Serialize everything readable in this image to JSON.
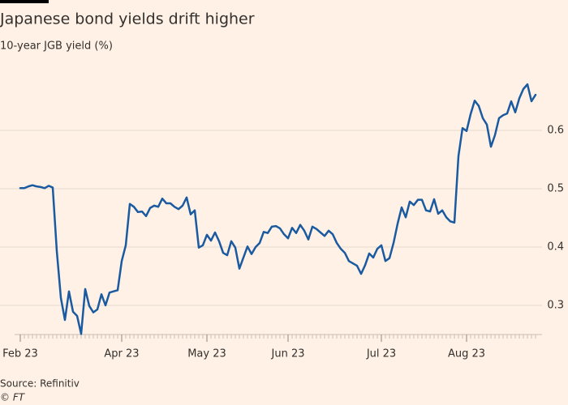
{
  "chart_data": {
    "type": "line",
    "title": "Japanese bond yields drift higher",
    "subtitle": "10-year JGB yield (%)",
    "source": "Source: Refinitiv",
    "credit": "© FT",
    "categories": [
      "Feb 23",
      null,
      null,
      null,
      null,
      null,
      null,
      null,
      null,
      null,
      null,
      null,
      null,
      null,
      null,
      null,
      null,
      null,
      null,
      null,
      null,
      null,
      null,
      null,
      null,
      "Apr 23",
      null,
      null,
      null,
      null,
      null,
      null,
      null,
      null,
      null,
      null,
      null,
      null,
      null,
      null,
      null,
      null,
      null,
      null,
      null,
      null,
      "May 23",
      null,
      null,
      null,
      null,
      null,
      null,
      null,
      null,
      null,
      null,
      null,
      null,
      null,
      null,
      null,
      null,
      null,
      null,
      null,
      "Jun 23",
      null,
      null,
      null,
      null,
      null,
      null,
      null,
      null,
      null,
      null,
      null,
      null,
      null,
      null,
      null,
      null,
      null,
      null,
      null,
      null,
      null,
      null,
      "Jul 23",
      null,
      null,
      null,
      null,
      null,
      null,
      null,
      null,
      null,
      null,
      null,
      null,
      null,
      null,
      null,
      null,
      null,
      null,
      null,
      null,
      "Aug 23",
      null,
      null,
      null,
      null,
      null,
      null,
      null,
      null,
      null,
      null,
      null,
      null,
      null,
      null,
      null,
      null,
      null
    ],
    "series": [
      {
        "name": "10-year JGB yield",
        "color": "#1a5aa0",
        "values": [
          0.501,
          0.501,
          0.504,
          0.506,
          0.504,
          0.503,
          0.501,
          0.505,
          0.502,
          0.393,
          0.313,
          0.275,
          0.324,
          0.289,
          0.282,
          0.251,
          0.328,
          0.299,
          0.288,
          0.293,
          0.319,
          0.3,
          0.322,
          0.324,
          0.326,
          0.376,
          0.403,
          0.474,
          0.469,
          0.46,
          0.461,
          0.453,
          0.467,
          0.471,
          0.469,
          0.483,
          0.475,
          0.475,
          0.469,
          0.465,
          0.471,
          0.485,
          0.456,
          0.463,
          0.399,
          0.403,
          0.421,
          0.411,
          0.425,
          0.41,
          0.39,
          0.386,
          0.41,
          0.399,
          0.363,
          0.382,
          0.401,
          0.388,
          0.4,
          0.407,
          0.426,
          0.424,
          0.435,
          0.436,
          0.432,
          0.422,
          0.415,
          0.433,
          0.424,
          0.438,
          0.428,
          0.413,
          0.435,
          0.431,
          0.425,
          0.419,
          0.428,
          0.422,
          0.407,
          0.397,
          0.39,
          0.376,
          0.372,
          0.368,
          0.354,
          0.369,
          0.389,
          0.382,
          0.397,
          0.403,
          0.376,
          0.381,
          0.407,
          0.44,
          0.468,
          0.451,
          0.478,
          0.472,
          0.481,
          0.481,
          0.463,
          0.461,
          0.482,
          0.457,
          0.463,
          0.451,
          0.444,
          0.442,
          0.556,
          0.604,
          0.599,
          0.628,
          0.651,
          0.642,
          0.621,
          0.61,
          0.572,
          0.592,
          0.621,
          0.626,
          0.629,
          0.65,
          0.631,
          0.655,
          0.671,
          0.679,
          0.65,
          0.661
        ]
      }
    ],
    "ylim": [
      0.25,
      0.7
    ],
    "yticks": [
      0.3,
      0.4,
      0.5,
      0.6
    ],
    "grid": true
  }
}
